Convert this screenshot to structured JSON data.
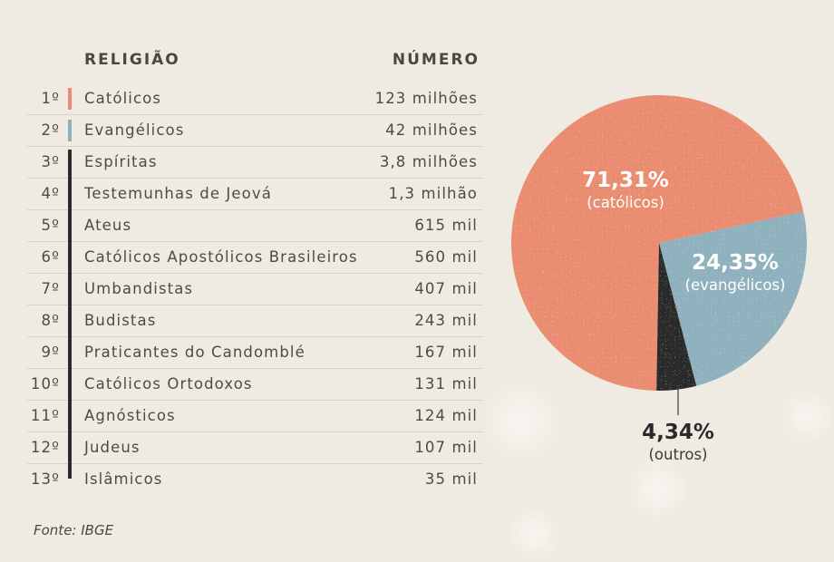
{
  "header": {
    "religion": "RELIGIÃO",
    "number": "NÚMERO"
  },
  "rows": [
    {
      "rank": "1º",
      "name": "Católicos",
      "value": "123 milhões",
      "marker": "catolicos"
    },
    {
      "rank": "2º",
      "name": "Evangélicos",
      "value": "42 milhões",
      "marker": "evangelicos"
    },
    {
      "rank": "3º",
      "name": "Espíritas",
      "value": "3,8 milhões",
      "marker": "outros"
    },
    {
      "rank": "4º",
      "name": "Testemunhas de Jeová",
      "value": "1,3 milhão",
      "marker": "outros"
    },
    {
      "rank": "5º",
      "name": "Ateus",
      "value": "615 mil",
      "marker": "outros"
    },
    {
      "rank": "6º",
      "name": "Católicos Apostólicos Brasileiros",
      "value": "560 mil",
      "marker": "outros"
    },
    {
      "rank": "7º",
      "name": "Umbandistas",
      "value": "407 mil",
      "marker": "outros"
    },
    {
      "rank": "8º",
      "name": "Budistas",
      "value": "243 mil",
      "marker": "outros"
    },
    {
      "rank": "9º",
      "name": "Praticantes do Candomblé",
      "value": "167 mil",
      "marker": "outros"
    },
    {
      "rank": "10º",
      "name": "Católicos Ortodoxos",
      "value": "131 mil",
      "marker": "outros"
    },
    {
      "rank": "11º",
      "name": "Agnósticos",
      "value": "124 mil",
      "marker": "outros"
    },
    {
      "rank": "12º",
      "name": "Judeus",
      "value": "107 mil",
      "marker": "outros"
    },
    {
      "rank": "13º",
      "name": "Islâmicos",
      "value": "35 mil",
      "marker": "outros"
    }
  ],
  "colors": {
    "catolicos": "#ea8c6f",
    "evangelicos": "#8fb1bd",
    "outros": "#2b2a2a",
    "background": "#f0ebe2"
  },
  "chart_data": {
    "type": "pie",
    "slices": [
      {
        "key": "catolicos",
        "value": 71.31,
        "label": "71,31%",
        "sublabel": "(católicos)"
      },
      {
        "key": "evangelicos",
        "value": 24.35,
        "label": "24,35%",
        "sublabel": "(evangélicos)"
      },
      {
        "key": "outros",
        "value": 4.34,
        "label": "4,34%",
        "sublabel": "(outros)"
      }
    ]
  },
  "source": "Fonte: IBGE"
}
